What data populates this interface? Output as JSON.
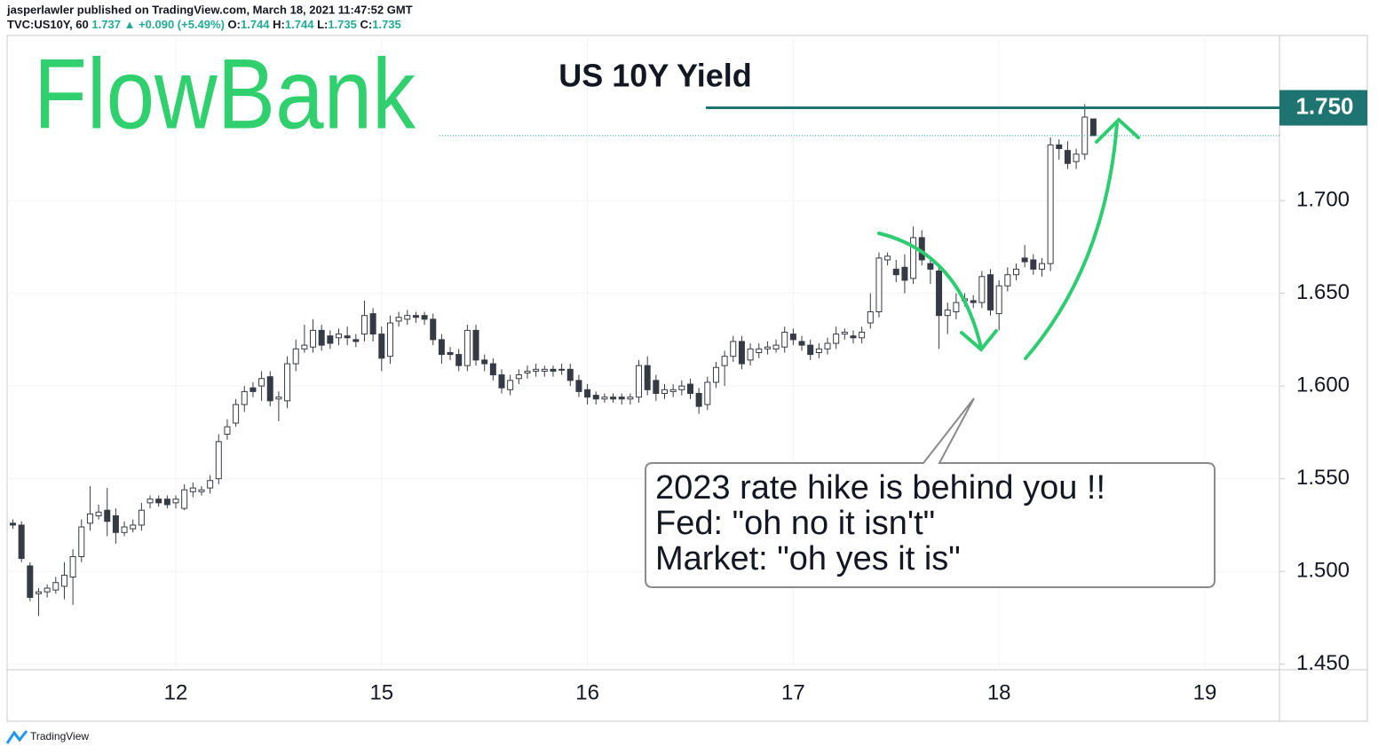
{
  "header": {
    "line1": "jasperlawler published on TradingView.com, March 18, 2021 11:47:52 GMT",
    "symbol": "TVC:US10Y, 60",
    "last": "1.737",
    "arrow": "▲",
    "change": "+0.090 (+5.49%)",
    "o_label": "O:",
    "o": "1.744",
    "h_label": "H:",
    "h": "1.744",
    "l_label": "L:",
    "l": "1.735",
    "c_label": "C:",
    "c": "1.735"
  },
  "logo": "FlowBank",
  "footer": "TradingView",
  "chart_data": {
    "type": "candlestick",
    "title": "US 10Y Yield",
    "categories": [
      null,
      null,
      null,
      null,
      null,
      null,
      null,
      null,
      null,
      null,
      null,
      null,
      null,
      null,
      null,
      null,
      null,
      null,
      null,
      "12",
      null,
      null,
      null,
      null,
      null,
      null,
      null,
      null,
      null,
      null,
      null,
      null,
      null,
      null,
      null,
      null,
      null,
      null,
      null,
      null,
      null,
      null,
      null,
      "15",
      null,
      null,
      null,
      null,
      null,
      null,
      null,
      null,
      null,
      null,
      null,
      null,
      null,
      null,
      null,
      null,
      null,
      null,
      null,
      null,
      null,
      null,
      null,
      "16",
      null,
      null,
      null,
      null,
      null,
      null,
      null,
      null,
      null,
      null,
      null,
      null,
      null,
      null,
      null,
      null,
      null,
      null,
      null,
      null,
      null,
      null,
      null,
      "17",
      null,
      null,
      null,
      null,
      null,
      null,
      null,
      null,
      null,
      null,
      null,
      null,
      null,
      null,
      null,
      null,
      null,
      null,
      null,
      null,
      null,
      null,
      null,
      "18",
      null,
      null,
      null,
      null,
      null,
      null,
      null,
      null,
      null,
      null,
      null,
      null,
      null,
      null,
      null,
      null,
      null,
      null,
      null,
      null,
      null,
      null,
      null,
      "19",
      null,
      null,
      null,
      null,
      null,
      null,
      null,
      null
    ],
    "open": [
      1.526,
      1.525,
      1.503,
      1.488,
      1.489,
      1.49,
      1.492,
      1.497,
      1.508,
      1.526,
      1.53,
      1.533,
      1.53,
      1.521,
      1.523,
      1.525,
      1.537,
      1.539,
      1.539,
      1.537,
      1.534,
      1.543,
      1.543,
      1.545,
      1.55,
      1.574,
      1.58,
      1.59,
      1.599,
      1.6,
      1.605,
      1.593,
      1.592,
      1.612,
      1.62,
      1.621,
      1.63,
      1.627,
      1.626,
      1.627,
      1.625,
      1.628,
      1.639,
      1.628,
      1.616,
      1.635,
      1.636,
      1.638,
      1.638,
      1.636,
      1.625,
      1.618,
      1.617,
      1.611,
      1.63,
      1.614,
      1.612,
      1.606,
      1.598,
      1.604,
      1.607,
      1.608,
      1.608,
      1.609,
      1.609,
      1.609,
      1.603,
      1.598,
      1.595,
      1.593,
      1.594,
      1.594,
      1.593,
      1.594,
      1.611,
      1.603,
      1.596,
      1.597,
      1.598,
      1.601,
      1.596,
      1.59,
      1.602,
      1.611,
      1.616,
      1.624,
      1.614,
      1.618,
      1.62,
      1.62,
      1.621,
      1.628,
      1.624,
      1.622,
      1.618,
      1.62,
      1.623,
      1.628,
      1.627,
      1.626,
      1.634,
      1.64,
      1.668,
      1.663,
      1.664,
      1.658,
      1.68,
      1.666,
      1.662,
      1.638,
      1.64,
      1.646,
      1.646,
      1.645,
      1.66,
      1.639,
      1.654,
      1.66,
      1.669,
      1.668,
      1.663,
      1.666,
      1.73,
      1.727,
      1.721,
      1.725,
      1.744,
      null,
      null,
      null,
      null,
      null,
      null,
      null,
      null,
      null,
      null,
      null,
      null,
      null,
      null,
      null,
      null,
      null,
      null,
      null,
      null,
      null
    ],
    "high": [
      1.528,
      1.527,
      1.505,
      1.491,
      1.493,
      1.497,
      1.505,
      1.512,
      1.528,
      1.546,
      1.536,
      1.545,
      1.534,
      1.527,
      1.528,
      1.537,
      1.541,
      1.541,
      1.541,
      1.541,
      1.547,
      1.548,
      1.546,
      1.552,
      1.574,
      1.582,
      1.593,
      1.6,
      1.602,
      1.608,
      1.608,
      1.597,
      1.616,
      1.625,
      1.633,
      1.636,
      1.633,
      1.63,
      1.631,
      1.632,
      1.628,
      1.646,
      1.642,
      1.632,
      1.638,
      1.64,
      1.641,
      1.64,
      1.64,
      1.639,
      1.628,
      1.621,
      1.62,
      1.633,
      1.633,
      1.617,
      1.615,
      1.609,
      1.606,
      1.609,
      1.611,
      1.612,
      1.611,
      1.611,
      1.612,
      1.612,
      1.606,
      1.601,
      1.597,
      1.596,
      1.596,
      1.596,
      1.596,
      1.614,
      1.616,
      1.606,
      1.601,
      1.601,
      1.603,
      1.604,
      1.599,
      1.605,
      1.613,
      1.619,
      1.627,
      1.627,
      1.623,
      1.623,
      1.624,
      1.625,
      1.632,
      1.631,
      1.627,
      1.625,
      1.623,
      1.626,
      1.632,
      1.631,
      1.63,
      1.632,
      1.65,
      1.672,
      1.672,
      1.668,
      1.671,
      1.686,
      1.684,
      1.67,
      1.665,
      1.645,
      1.65,
      1.65,
      1.649,
      1.662,
      1.663,
      1.657,
      1.664,
      1.666,
      1.676,
      1.671,
      1.669,
      1.734,
      1.733,
      1.732,
      1.728,
      1.752,
      1.744,
      null,
      null,
      null,
      null,
      null,
      null,
      null,
      null,
      null,
      null,
      null,
      null,
      null,
      null,
      null,
      null,
      null,
      null,
      null,
      null,
      null
    ],
    "low": [
      1.523,
      1.505,
      1.484,
      1.476,
      1.486,
      1.488,
      1.485,
      1.482,
      1.505,
      1.522,
      1.528,
      1.519,
      1.515,
      1.519,
      1.521,
      1.522,
      1.534,
      1.535,
      1.534,
      1.534,
      1.533,
      1.54,
      1.541,
      1.542,
      1.547,
      1.571,
      1.578,
      1.586,
      1.594,
      1.592,
      1.589,
      1.581,
      1.588,
      1.608,
      1.618,
      1.618,
      1.619,
      1.62,
      1.622,
      1.622,
      1.621,
      1.624,
      1.624,
      1.608,
      1.612,
      1.632,
      1.633,
      1.634,
      1.633,
      1.622,
      1.612,
      1.614,
      1.608,
      1.608,
      1.611,
      1.608,
      1.603,
      1.596,
      1.595,
      1.601,
      1.604,
      1.605,
      1.605,
      1.605,
      1.606,
      1.6,
      1.594,
      1.59,
      1.59,
      1.591,
      1.591,
      1.59,
      1.59,
      1.591,
      1.595,
      1.592,
      1.593,
      1.594,
      1.595,
      1.593,
      1.585,
      1.587,
      1.599,
      1.6,
      1.613,
      1.609,
      1.611,
      1.615,
      1.617,
      1.618,
      1.618,
      1.622,
      1.619,
      1.614,
      1.615,
      1.617,
      1.62,
      1.625,
      1.623,
      1.623,
      1.631,
      1.637,
      1.665,
      1.656,
      1.65,
      1.655,
      1.665,
      1.655,
      1.62,
      1.628,
      1.636,
      1.643,
      1.642,
      1.642,
      1.638,
      1.63,
      1.651,
      1.657,
      1.664,
      1.66,
      1.659,
      1.662,
      1.722,
      1.717,
      1.717,
      1.722,
      1.735,
      null,
      null,
      null,
      null,
      null,
      null,
      null,
      null,
      null,
      null,
      null,
      null,
      null,
      null,
      null,
      null,
      null,
      null,
      null,
      null,
      null
    ],
    "close": [
      1.525,
      1.507,
      1.486,
      1.489,
      1.491,
      1.494,
      1.498,
      1.508,
      1.524,
      1.531,
      1.532,
      1.527,
      1.521,
      1.524,
      1.525,
      1.533,
      1.539,
      1.537,
      1.536,
      1.539,
      1.544,
      1.545,
      1.544,
      1.549,
      1.57,
      1.578,
      1.59,
      1.597,
      1.597,
      1.604,
      1.592,
      1.594,
      1.612,
      1.62,
      1.622,
      1.63,
      1.622,
      1.623,
      1.628,
      1.626,
      1.624,
      1.638,
      1.628,
      1.615,
      1.634,
      1.637,
      1.638,
      1.637,
      1.636,
      1.625,
      1.617,
      1.617,
      1.611,
      1.63,
      1.614,
      1.612,
      1.606,
      1.599,
      1.603,
      1.606,
      1.608,
      1.609,
      1.609,
      1.608,
      1.609,
      1.603,
      1.597,
      1.594,
      1.593,
      1.594,
      1.593,
      1.593,
      1.594,
      1.611,
      1.598,
      1.596,
      1.598,
      1.598,
      1.6,
      1.596,
      1.589,
      1.602,
      1.61,
      1.616,
      1.624,
      1.612,
      1.62,
      1.62,
      1.621,
      1.622,
      1.629,
      1.625,
      1.622,
      1.617,
      1.62,
      1.623,
      1.628,
      1.629,
      1.626,
      1.629,
      1.64,
      1.669,
      1.67,
      1.66,
      1.657,
      1.68,
      1.668,
      1.663,
      1.638,
      1.641,
      1.645,
      1.647,
      1.645,
      1.659,
      1.641,
      1.654,
      1.66,
      1.663,
      1.667,
      1.663,
      1.666,
      1.73,
      1.728,
      1.72,
      1.725,
      1.745,
      1.735,
      null,
      null,
      null,
      null,
      null,
      null,
      null,
      null,
      null,
      null,
      null,
      null,
      null,
      null,
      null,
      null,
      null,
      null,
      null,
      null,
      null
    ],
    "up_color": "#ffffff",
    "down_color": "#363a45",
    "grid": true,
    "ylim": [
      1.447,
      1.789
    ],
    "yticks": [
      {
        "value": 1.45,
        "label": "1.450"
      },
      {
        "value": 1.5,
        "label": "1.500"
      },
      {
        "value": 1.55,
        "label": "1.550"
      },
      {
        "value": 1.6,
        "label": "1.600"
      },
      {
        "value": 1.65,
        "label": "1.650"
      },
      {
        "value": 1.7,
        "label": "1.700"
      }
    ],
    "hline": {
      "value": 1.75,
      "label": "1.750",
      "color": "#1e7470"
    },
    "annotation": [
      "2023 rate hike is behind you !!",
      "Fed: \"oh no it isn't\"",
      "Market: \"oh yes it is\""
    ]
  }
}
